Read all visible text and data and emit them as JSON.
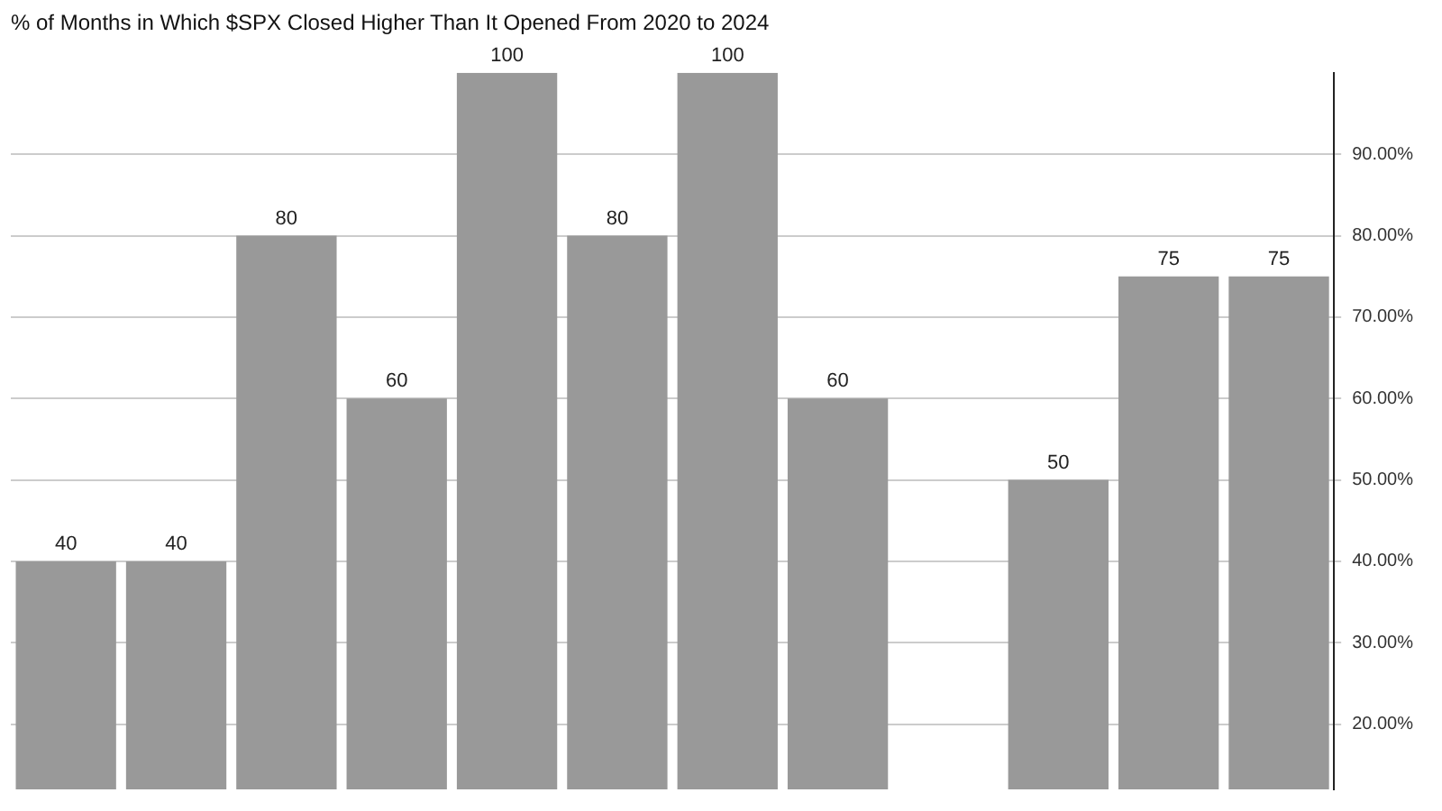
{
  "chart_data": {
    "type": "bar",
    "title": "% of Months in Which $SPX Closed Higher Than It Opened From 2020 to 2024",
    "categories": [
      null,
      null,
      null,
      null,
      null,
      null,
      null,
      null,
      null,
      null,
      null,
      null
    ],
    "values": [
      40,
      40,
      80,
      60,
      100,
      80,
      100,
      60,
      null,
      50,
      75,
      75
    ],
    "color": "#999999",
    "ylim": [
      12,
      100
    ],
    "yticks": [
      {
        "value": 20,
        "label": "20.00%"
      },
      {
        "value": 30,
        "label": "30.00%"
      },
      {
        "value": 40,
        "label": "40.00%"
      },
      {
        "value": 50,
        "label": "50.00%"
      },
      {
        "value": 60,
        "label": "60.00%"
      },
      {
        "value": 70,
        "label": "70.00%"
      },
      {
        "value": 80,
        "label": "80.00%"
      },
      {
        "value": 90,
        "label": "90.00%"
      }
    ],
    "grid": "y",
    "data_labels": true,
    "tick_labels": "y"
  }
}
